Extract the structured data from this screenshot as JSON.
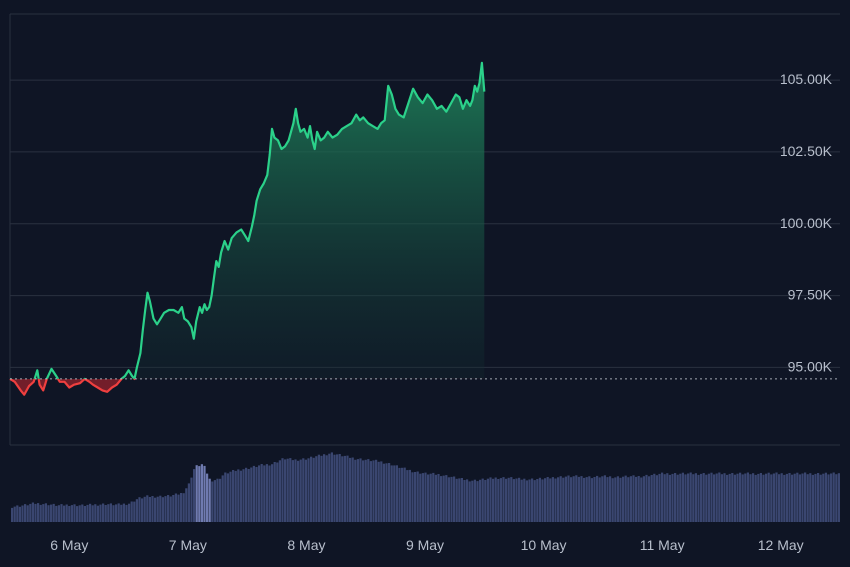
{
  "colors": {
    "background": "#0f1525",
    "grid": "#2a3140",
    "up_line": "#2bd18a",
    "down_line": "#ef3f3f",
    "volume": "#3a4670",
    "volume_highlight": "#6f7bb0",
    "baseline": "#c9ced8",
    "tick_text": "#b8bfcc"
  },
  "chart_data": {
    "type": "area",
    "subtype": "baseline",
    "baseline_value": 94.6,
    "y_unit": "K",
    "ylim": [
      92.3,
      107.3
    ],
    "y_ticks": [
      {
        "value": 95.0,
        "label": "95.00K"
      },
      {
        "value": 97.5,
        "label": "97.50K"
      },
      {
        "value": 100.0,
        "label": "100.00K"
      },
      {
        "value": 102.5,
        "label": "102.50K"
      },
      {
        "value": 105.0,
        "label": "105.00K"
      }
    ],
    "xlim": [
      5.5,
      12.5
    ],
    "x_ticks": [
      {
        "value": 6,
        "label": "6 May"
      },
      {
        "value": 7,
        "label": "7 May"
      },
      {
        "value": 8,
        "label": "8 May"
      },
      {
        "value": 9,
        "label": "9 May"
      },
      {
        "value": 10,
        "label": "10 May"
      },
      {
        "value": 11,
        "label": "11 May"
      },
      {
        "value": 12,
        "label": "12 May"
      }
    ],
    "price_series": [
      [
        5.5,
        94.6
      ],
      [
        5.54,
        94.5
      ],
      [
        5.59,
        94.2
      ],
      [
        5.62,
        94.05
      ],
      [
        5.66,
        94.35
      ],
      [
        5.7,
        94.5
      ],
      [
        5.73,
        94.9
      ],
      [
        5.75,
        94.4
      ],
      [
        5.78,
        94.2
      ],
      [
        5.81,
        94.6
      ],
      [
        5.85,
        94.95
      ],
      [
        5.89,
        94.7
      ],
      [
        5.92,
        94.5
      ],
      [
        5.96,
        94.5
      ],
      [
        6.0,
        94.3
      ],
      [
        6.04,
        94.4
      ],
      [
        6.09,
        94.45
      ],
      [
        6.13,
        94.6
      ],
      [
        6.17,
        94.5
      ],
      [
        6.2,
        94.4
      ],
      [
        6.24,
        94.3
      ],
      [
        6.28,
        94.2
      ],
      [
        6.32,
        94.15
      ],
      [
        6.36,
        94.3
      ],
      [
        6.4,
        94.4
      ],
      [
        6.44,
        94.6
      ],
      [
        6.47,
        94.7
      ],
      [
        6.5,
        94.9
      ],
      [
        6.53,
        94.7
      ],
      [
        6.55,
        94.6
      ],
      [
        6.57,
        95.0
      ],
      [
        6.6,
        95.5
      ],
      [
        6.62,
        96.3
      ],
      [
        6.64,
        97.0
      ],
      [
        6.66,
        97.6
      ],
      [
        6.68,
        97.3
      ],
      [
        6.71,
        96.7
      ],
      [
        6.74,
        96.5
      ],
      [
        6.77,
        96.7
      ],
      [
        6.8,
        96.9
      ],
      [
        6.84,
        97.0
      ],
      [
        6.88,
        97.0
      ],
      [
        6.92,
        96.9
      ],
      [
        6.95,
        97.1
      ],
      [
        6.97,
        96.7
      ],
      [
        7.0,
        96.6
      ],
      [
        7.03,
        96.4
      ],
      [
        7.05,
        96.0
      ],
      [
        7.07,
        96.6
      ],
      [
        7.1,
        97.1
      ],
      [
        7.12,
        96.9
      ],
      [
        7.14,
        97.2
      ],
      [
        7.16,
        97.0
      ],
      [
        7.18,
        97.1
      ],
      [
        7.2,
        97.5
      ],
      [
        7.22,
        98.1
      ],
      [
        7.24,
        98.7
      ],
      [
        7.26,
        98.5
      ],
      [
        7.28,
        99.0
      ],
      [
        7.31,
        99.4
      ],
      [
        7.34,
        99.1
      ],
      [
        7.37,
        99.5
      ],
      [
        7.41,
        99.7
      ],
      [
        7.45,
        99.8
      ],
      [
        7.48,
        99.6
      ],
      [
        7.51,
        99.4
      ],
      [
        7.54,
        99.9
      ],
      [
        7.56,
        100.3
      ],
      [
        7.58,
        100.8
      ],
      [
        7.61,
        101.2
      ],
      [
        7.64,
        101.4
      ],
      [
        7.67,
        101.7
      ],
      [
        7.69,
        102.4
      ],
      [
        7.71,
        103.3
      ],
      [
        7.73,
        103.0
      ],
      [
        7.76,
        102.9
      ],
      [
        7.79,
        102.6
      ],
      [
        7.82,
        102.7
      ],
      [
        7.85,
        102.9
      ],
      [
        7.87,
        103.2
      ],
      [
        7.89,
        103.5
      ],
      [
        7.91,
        104.0
      ],
      [
        7.93,
        103.5
      ],
      [
        7.95,
        103.2
      ],
      [
        7.98,
        103.3
      ],
      [
        8.01,
        103.0
      ],
      [
        8.03,
        103.4
      ],
      [
        8.05,
        102.9
      ],
      [
        8.07,
        102.6
      ],
      [
        8.09,
        103.2
      ],
      [
        8.12,
        102.9
      ],
      [
        8.15,
        103.0
      ],
      [
        8.18,
        103.2
      ],
      [
        8.22,
        103.0
      ],
      [
        8.26,
        103.1
      ],
      [
        8.3,
        103.3
      ],
      [
        8.34,
        103.4
      ],
      [
        8.38,
        103.5
      ],
      [
        8.42,
        103.8
      ],
      [
        8.45,
        103.6
      ],
      [
        8.48,
        103.7
      ],
      [
        8.52,
        103.5
      ],
      [
        8.56,
        103.4
      ],
      [
        8.6,
        103.3
      ],
      [
        8.63,
        103.5
      ],
      [
        8.66,
        103.6
      ],
      [
        8.69,
        104.8
      ],
      [
        8.72,
        104.5
      ],
      [
        8.75,
        104.0
      ],
      [
        8.78,
        103.8
      ],
      [
        8.82,
        103.7
      ],
      [
        8.86,
        104.2
      ],
      [
        8.9,
        104.7
      ],
      [
        8.94,
        104.4
      ],
      [
        8.98,
        104.2
      ],
      [
        9.02,
        104.5
      ],
      [
        9.06,
        104.3
      ],
      [
        9.1,
        104.0
      ],
      [
        9.14,
        104.1
      ],
      [
        9.18,
        103.9
      ],
      [
        9.22,
        104.2
      ],
      [
        9.26,
        104.5
      ],
      [
        9.29,
        104.4
      ],
      [
        9.32,
        104.0
      ],
      [
        9.35,
        104.3
      ],
      [
        9.38,
        104.1
      ],
      [
        9.4,
        104.3
      ],
      [
        9.42,
        104.8
      ],
      [
        9.44,
        104.6
      ],
      [
        9.46,
        104.9
      ],
      [
        9.48,
        105.6
      ],
      [
        9.5,
        104.6
      ]
    ],
    "volume_max": 100,
    "volume_series": [
      [
        5.5,
        22
      ],
      [
        5.6,
        24
      ],
      [
        5.7,
        27
      ],
      [
        5.8,
        26
      ],
      [
        5.9,
        24
      ],
      [
        6.0,
        25
      ],
      [
        6.1,
        24
      ],
      [
        6.2,
        25
      ],
      [
        6.3,
        26
      ],
      [
        6.4,
        25
      ],
      [
        6.5,
        27
      ],
      [
        6.57,
        34
      ],
      [
        6.65,
        37
      ],
      [
        6.75,
        37
      ],
      [
        6.85,
        38
      ],
      [
        6.95,
        42
      ],
      [
        7.0,
        55
      ],
      [
        7.05,
        80
      ],
      [
        7.12,
        84
      ],
      [
        7.18,
        60
      ],
      [
        7.25,
        62
      ],
      [
        7.3,
        70
      ],
      [
        7.4,
        75
      ],
      [
        7.5,
        78
      ],
      [
        7.6,
        82
      ],
      [
        7.7,
        84
      ],
      [
        7.8,
        92
      ],
      [
        7.9,
        90
      ],
      [
        8.0,
        92
      ],
      [
        8.1,
        96
      ],
      [
        8.2,
        100
      ],
      [
        8.3,
        96
      ],
      [
        8.4,
        92
      ],
      [
        8.5,
        90
      ],
      [
        8.6,
        88
      ],
      [
        8.7,
        84
      ],
      [
        8.8,
        78
      ],
      [
        8.9,
        73
      ],
      [
        9.0,
        70
      ],
      [
        9.1,
        69
      ],
      [
        9.2,
        66
      ],
      [
        9.3,
        62
      ],
      [
        9.4,
        60
      ],
      [
        9.5,
        62
      ],
      [
        9.6,
        64
      ],
      [
        9.7,
        64
      ],
      [
        9.8,
        62
      ],
      [
        9.9,
        62
      ],
      [
        10.0,
        63
      ],
      [
        10.1,
        65
      ],
      [
        10.2,
        66
      ],
      [
        10.3,
        66
      ],
      [
        10.4,
        65
      ],
      [
        10.5,
        66
      ],
      [
        10.6,
        65
      ],
      [
        10.7,
        66
      ],
      [
        10.8,
        66
      ],
      [
        10.9,
        68
      ],
      [
        11.0,
        70
      ]
    ],
    "volume_highlight_range": [
      7.05,
      7.18
    ]
  }
}
